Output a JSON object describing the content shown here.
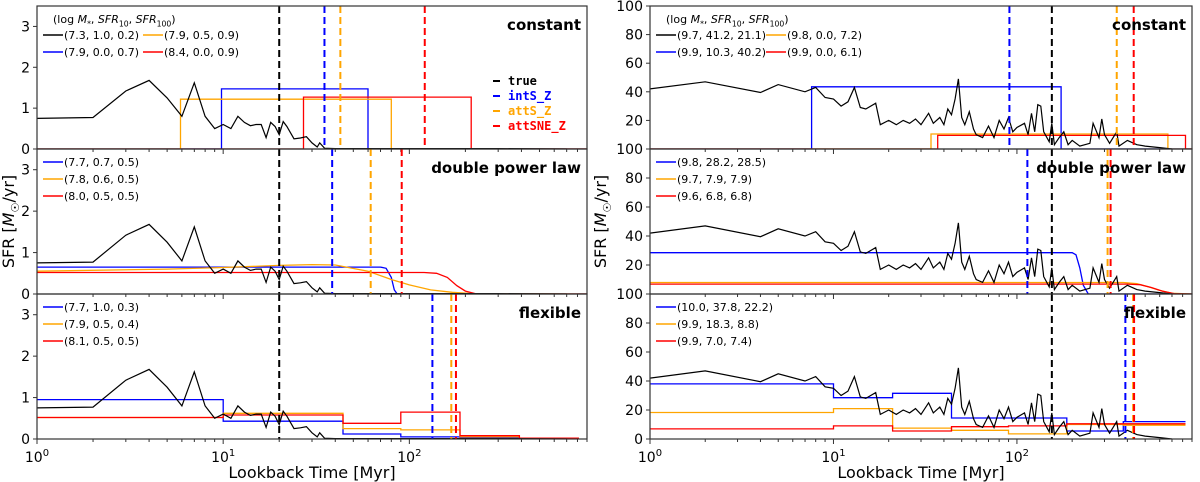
{
  "chart_data": {
    "type": "line",
    "xlabel": "Lookback Time [Myr]",
    "ylabel": [
      {
        "t": "SFR ["
      },
      {
        "t": "M",
        "it": true
      },
      {
        "t": "☉",
        "sub": true
      },
      {
        "t": "/yr]"
      }
    ],
    "xscale": "log",
    "xlim": [
      1,
      900
    ],
    "xticklabels": [
      {
        "base": "10",
        "exp": "0",
        "value": 1
      },
      {
        "base": "10",
        "exp": "1",
        "value": 10
      },
      {
        "base": "10",
        "exp": "2",
        "value": 100
      }
    ],
    "legend_title": [
      {
        "t": "(log "
      },
      {
        "t": "M",
        "it": true
      },
      {
        "t": "*",
        "sub": true
      },
      {
        "t": ", "
      },
      {
        "t": "SFR",
        "it": true
      },
      {
        "t": "10",
        "sub": true
      },
      {
        "t": ", "
      },
      {
        "t": "SFR",
        "it": true
      },
      {
        "t": "100",
        "sub": true
      },
      {
        "t": ")"
      }
    ],
    "colors": {
      "true": "#000000",
      "intS_Z": "#0000ff",
      "attS_Z": "#ffa500",
      "attSNE_Z": "#ff0000"
    },
    "vline_legend": [
      {
        "label": "true",
        "color": "#000000"
      },
      {
        "label": "intS_Z",
        "color": "#0000ff"
      },
      {
        "label": "attS_Z",
        "color": "#ffa500"
      },
      {
        "label": "attSNE_Z",
        "color": "#ff0000"
      }
    ],
    "true_sfh": {
      "left": {
        "x": [
          1,
          2,
          3,
          4,
          5,
          6,
          7,
          8,
          9,
          10,
          11,
          12,
          13,
          14,
          15,
          16,
          17,
          18,
          19,
          20,
          21,
          22,
          24,
          26,
          28,
          30,
          32,
          33,
          35,
          40,
          50,
          100,
          300,
          700
        ],
        "y": [
          0.75,
          0.77,
          1.42,
          1.68,
          1.25,
          0.8,
          1.62,
          0.8,
          0.5,
          0.6,
          0.5,
          0.8,
          0.65,
          0.57,
          0.6,
          0.6,
          0.28,
          0.65,
          0.55,
          0.35,
          0.67,
          0.55,
          0.25,
          0.27,
          0.3,
          0.15,
          0.05,
          0.15,
          0.02,
          0.01,
          0.01,
          0.01,
          0.01,
          0
        ]
      },
      "right": {
        "x": [
          1,
          2,
          4,
          5,
          7,
          8,
          9,
          10,
          11,
          12,
          13,
          14,
          15,
          17,
          18,
          20,
          22,
          24,
          26,
          28,
          30,
          33,
          35,
          38,
          40,
          42,
          44,
          46,
          48,
          50,
          52,
          55,
          58,
          60,
          65,
          70,
          75,
          80,
          85,
          90,
          95,
          100,
          110,
          115,
          120,
          125,
          130,
          135,
          140,
          150,
          155,
          160,
          170,
          180,
          190,
          200,
          220,
          250,
          260,
          280,
          290,
          300,
          320,
          350,
          360,
          400,
          450,
          500,
          600,
          700
        ],
        "y": [
          42,
          47,
          39.5,
          45,
          40,
          43,
          36,
          35,
          30,
          33,
          43,
          29,
          28,
          32,
          17,
          20,
          17,
          20,
          18,
          21,
          17,
          25,
          18,
          22,
          17,
          28,
          24,
          35,
          49,
          22,
          17,
          26,
          14,
          10,
          8,
          16,
          8,
          20,
          14,
          22,
          12,
          15,
          18,
          10,
          25,
          12,
          31,
          30,
          12,
          5,
          18,
          3,
          8,
          12,
          3,
          6,
          2,
          4,
          18,
          8,
          21,
          10,
          4,
          12,
          2,
          6,
          3,
          2,
          1,
          0
        ]
      }
    },
    "panels": [
      {
        "side": "left",
        "label": "constant",
        "ylim": [
          0,
          3.5
        ],
        "yticks": [
          0,
          1,
          2,
          3
        ],
        "legend_columns": 2,
        "series": [
          {
            "name": "(7.3, 1.0, 0.2)",
            "color": "#000000",
            "true": true
          },
          {
            "name": "(7.9, 0.0, 0.7)",
            "color": "#0000ff",
            "x": [
              1,
              9.8,
              9.8,
              60,
              60,
              900
            ],
            "y": [
              0,
              0,
              1.47,
              1.47,
              0,
              0
            ]
          },
          {
            "name": "(7.9, 0.5, 0.9)",
            "color": "#ffa500",
            "x": [
              1,
              5.9,
              5.9,
              80,
              80,
              900
            ],
            "y": [
              0,
              0,
              1.22,
              1.22,
              0,
              0
            ]
          },
          {
            "name": "(8.4, 0.0, 0.9)",
            "color": "#ff0000",
            "x": [
              1,
              27,
              27,
              215,
              215,
              900
            ],
            "y": [
              0,
              0,
              1.27,
              1.27,
              0,
              0
            ]
          }
        ],
        "vlines": [
          {
            "x": 20,
            "color": "#000000"
          },
          {
            "x": 35,
            "color": "#0000ff"
          },
          {
            "x": 42.6,
            "color": "#ffa500"
          },
          {
            "x": 121,
            "color": "#ff0000"
          }
        ]
      },
      {
        "side": "left",
        "label": "double power law",
        "ylim": [
          0,
          3.5
        ],
        "yticks": [
          0,
          1,
          2,
          3
        ],
        "legend_columns": 1,
        "series": [
          {
            "name": "(7.7, 0.7, 0.5)",
            "color": "#0000ff",
            "x": [
              1,
              70,
              75,
              80,
              83,
              86,
              900
            ],
            "y": [
              0.65,
              0.65,
              0.62,
              0.4,
              0.1,
              0,
              0
            ]
          },
          {
            "name": "(7.8, 0.6, 0.5)",
            "color": "#ffa500",
            "x": [
              1,
              5,
              10,
              20,
              30,
              40,
              60,
              80,
              100,
              130,
              170,
              220,
              900
            ],
            "y": [
              0.55,
              0.6,
              0.64,
              0.69,
              0.71,
              0.7,
              0.55,
              0.35,
              0.22,
              0.1,
              0.04,
              0.01,
              0
            ]
          },
          {
            "name": "(8.0, 0.5, 0.5)",
            "color": "#ff0000",
            "x": [
              1,
              120,
              140,
              160,
              180,
              200,
              230,
              900
            ],
            "y": [
              0.52,
              0.52,
              0.5,
              0.4,
              0.2,
              0.07,
              0,
              0
            ]
          }
        ],
        "true": true,
        "vlines": [
          {
            "x": 20,
            "color": "#000000"
          },
          {
            "x": 38.5,
            "color": "#0000ff"
          },
          {
            "x": 62,
            "color": "#ffa500"
          },
          {
            "x": 91,
            "color": "#ff0000"
          }
        ]
      },
      {
        "side": "left",
        "label": "flexible",
        "ylim": [
          0,
          3.5
        ],
        "yticks": [
          0,
          1,
          2,
          3
        ],
        "legend_columns": 1,
        "series": [
          {
            "name": "(7.7, 1.0, 0.3)",
            "color": "#0000ff",
            "bins": [
              1,
              10,
              44,
              90,
              187,
              390,
              814
            ],
            "values": [
              0.95,
              0.43,
              0.12,
              0.05,
              0.03,
              0.02
            ]
          },
          {
            "name": "(7.9, 0.5, 0.4)",
            "color": "#ffa500",
            "bins": [
              1,
              10,
              44,
              90,
              187,
              390,
              814
            ],
            "values": [
              0.52,
              0.62,
              0.25,
              0.22,
              0.05,
              0.02
            ]
          },
          {
            "name": "(8.1, 0.5, 0.5)",
            "color": "#ff0000",
            "bins": [
              1,
              10,
              44,
              90,
              187,
              390,
              814
            ],
            "values": [
              0.52,
              0.58,
              0.38,
              0.65,
              0.08,
              0.02
            ]
          }
        ],
        "true": true,
        "vlines": [
          {
            "x": 20,
            "color": "#000000"
          },
          {
            "x": 133,
            "color": "#0000ff"
          },
          {
            "x": 168,
            "color": "#ffa500"
          },
          {
            "x": 178,
            "color": "#ff0000"
          }
        ]
      },
      {
        "side": "right",
        "label": "constant",
        "ylim": [
          0,
          100
        ],
        "yticks": [
          0,
          20,
          40,
          60,
          80,
          100
        ],
        "legend_columns": 2,
        "series": [
          {
            "name": "(9.7, 41.2, 21.1)",
            "color": "#000000",
            "true": true
          },
          {
            "name": "(9.9, 10.3, 40.2)",
            "color": "#0000ff",
            "x": [
              1,
              7.6,
              7.6,
              174,
              174,
              900
            ],
            "y": [
              0,
              0,
              43.5,
              43.5,
              0,
              0
            ]
          },
          {
            "name": "(9.8, 0.0, 7.2)",
            "color": "#ffa500",
            "x": [
              1,
              34,
              34,
              665,
              665,
              900
            ],
            "y": [
              0,
              0,
              10.5,
              10.5,
              0,
              0
            ]
          },
          {
            "name": "(9.9, 0.0, 6.1)",
            "color": "#ff0000",
            "x": [
              1,
              37,
              37,
              830,
              830,
              900
            ],
            "y": [
              0,
              0,
              9.5,
              9.5,
              0,
              0
            ]
          }
        ],
        "vlines": [
          {
            "x": 155,
            "color": "#000000"
          },
          {
            "x": 91,
            "color": "#0000ff"
          },
          {
            "x": 350,
            "color": "#ffa500"
          },
          {
            "x": 433,
            "color": "#ff0000"
          }
        ]
      },
      {
        "side": "right",
        "label": "double power law",
        "ylim": [
          0,
          100
        ],
        "yticks": [
          0,
          20,
          40,
          60,
          80,
          100
        ],
        "legend_columns": 1,
        "series": [
          {
            "name": "(9.8, 28.2, 28.5)",
            "color": "#0000ff",
            "x": [
              1,
              200,
              210,
              220,
              230,
              245,
              900
            ],
            "y": [
              28.5,
              28.5,
              27,
              18,
              6,
              0,
              0
            ]
          },
          {
            "name": "(9.7, 7.9, 7.9)",
            "color": "#ffa500",
            "x": [
              1,
              380,
              450,
              520,
              600,
              700,
              900
            ],
            "y": [
              7.9,
              7.9,
              7.2,
              5,
              2.5,
              0.5,
              0
            ]
          },
          {
            "name": "(9.6, 6.8, 6.8)",
            "color": "#ff0000",
            "x": [
              1,
              400,
              470,
              540,
              620,
              720,
              900
            ],
            "y": [
              6.8,
              6.8,
              6.4,
              4.5,
              2,
              0.3,
              0
            ]
          }
        ],
        "true": true,
        "vlines": [
          {
            "x": 155,
            "color": "#000000"
          },
          {
            "x": 114,
            "color": "#0000ff"
          },
          {
            "x": 312,
            "color": "#ffa500"
          },
          {
            "x": 324,
            "color": "#ff0000"
          }
        ]
      },
      {
        "side": "right",
        "label": "flexible",
        "ylim": [
          0,
          100
        ],
        "yticks": [
          0,
          20,
          40,
          60,
          80,
          100
        ],
        "legend_columns": 1,
        "series": [
          {
            "name": "(10.0, 37.8, 22.2)",
            "color": "#0000ff",
            "bins": [
              1,
              10,
              21,
              44,
              90,
              187,
              380,
              830
            ],
            "values": [
              38,
              28.5,
              31.5,
              14.5,
              14.5,
              5.5,
              12
            ]
          },
          {
            "name": "(9.9, 18.3, 8.8)",
            "color": "#ffa500",
            "bins": [
              1,
              10,
              21,
              44,
              90,
              187,
              380,
              830
            ],
            "values": [
              18.3,
              21,
              7.5,
              6,
              3.5,
              10,
              9.5
            ]
          },
          {
            "name": "(9.9, 7.0, 7.4)",
            "color": "#ff0000",
            "bins": [
              1,
              10,
              21,
              44,
              90,
              187,
              380,
              830
            ],
            "values": [
              7,
              9,
              5.5,
              8.5,
              9,
              10.5,
              10.5
            ]
          }
        ],
        "true": true,
        "vlines": [
          {
            "x": 155,
            "color": "#000000"
          },
          {
            "x": 390,
            "color": "#0000ff"
          },
          {
            "x": 430,
            "color": "#ffa500"
          },
          {
            "x": 435,
            "color": "#ff0000"
          }
        ]
      }
    ]
  }
}
